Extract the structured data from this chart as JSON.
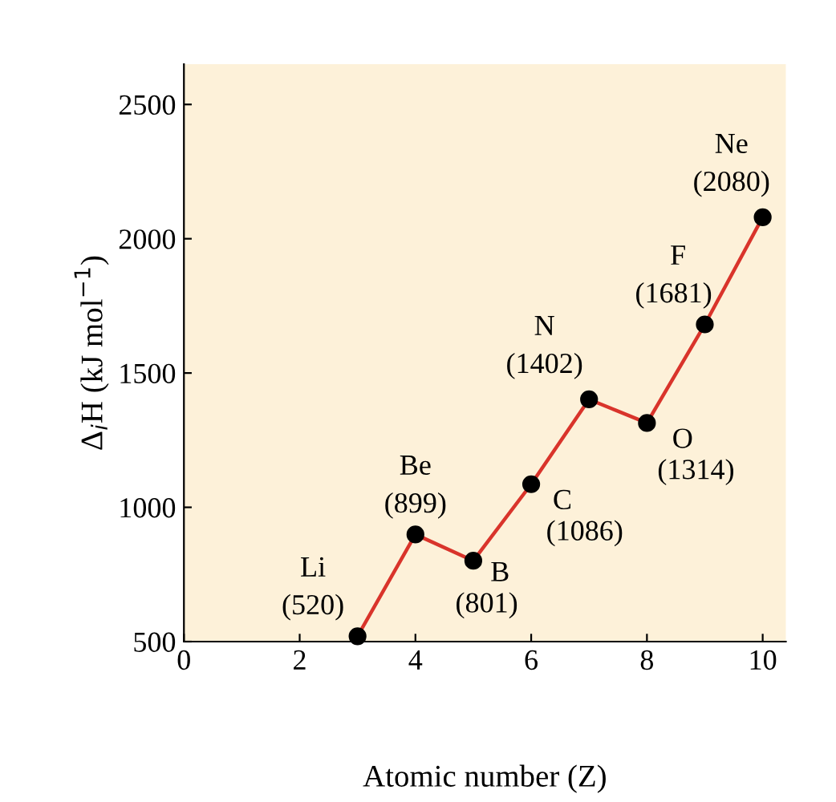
{
  "chart_data": {
    "type": "line",
    "xlabel": "Atomic number (Z)",
    "ylabel": "Δ$_{i}$H (kJ mol$^{−1}$)",
    "x": [
      3,
      4,
      5,
      6,
      7,
      8,
      9,
      10
    ],
    "series": [
      {
        "color": "#d9342b",
        "values": [
          520,
          899,
          801,
          1086,
          1402,
          1314,
          1681,
          2080
        ],
        "value_labels": [
          "(520)",
          "(899)",
          "(801)",
          "(1086)",
          "(1402)",
          "(1314)",
          "(1681)",
          "(2080)"
        ]
      }
    ],
    "annotations": [
      {
        "text": "Li",
        "x": 3,
        "y": 520
      },
      {
        "text": "Be",
        "x": 4,
        "y": 899
      },
      {
        "text": "B",
        "x": 5,
        "y": 801
      },
      {
        "text": "C",
        "x": 6,
        "y": 1086
      },
      {
        "text": "N",
        "x": 7,
        "y": 1402
      },
      {
        "text": "O",
        "x": 8,
        "y": 1314
      },
      {
        "text": "F",
        "x": 9,
        "y": 1681
      },
      {
        "text": "Ne",
        "x": 10,
        "y": 2080
      }
    ],
    "xlim": [
      0,
      10.4
    ],
    "xticks": [
      0,
      2,
      4,
      6,
      8,
      10
    ],
    "ylim": [
      500,
      2650
    ],
    "yticks": [
      500,
      1000,
      1500,
      2000,
      2500
    ],
    "marker": "circle",
    "line_style": "solid"
  }
}
